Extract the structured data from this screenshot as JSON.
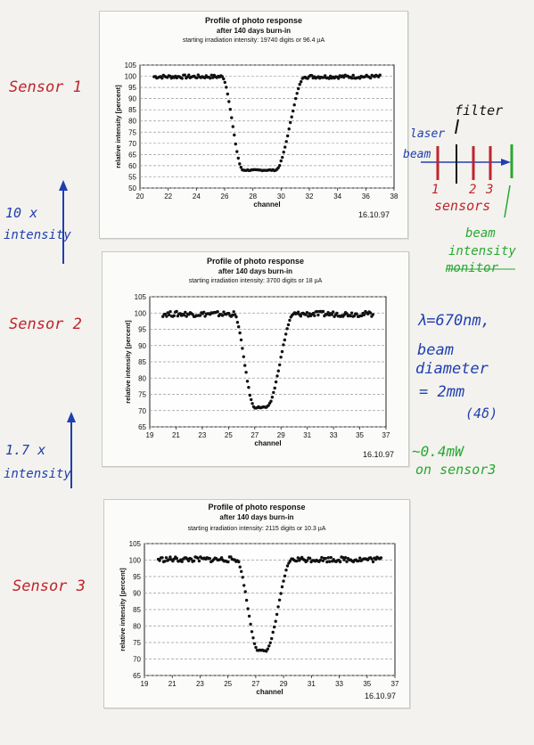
{
  "chart_data": [
    {
      "type": "scatter",
      "title": "Profile of photo response",
      "subtitle": "after 140 days burn-in",
      "note": "starting irradiation intensity: 19740 digits or 96.4 µA",
      "xlabel": "channel",
      "ylabel": "relative intensity [percent]",
      "xlim": [
        20,
        38
      ],
      "ylim": [
        50,
        105
      ],
      "xticks": [
        "20",
        "22",
        "24",
        "26",
        "28",
        "30",
        "32",
        "34",
        "36",
        "38"
      ],
      "yticks": [
        "50",
        "55",
        "60",
        "65",
        "70",
        "75",
        "80",
        "85",
        "90",
        "95",
        "100",
        "105"
      ],
      "grid": true,
      "date": "16.10.97",
      "profile": {
        "x_start": 21,
        "x_end": 37,
        "fall_start": 25.8,
        "bottom_start": 27.3,
        "bottom_end": 29.6,
        "rise_end": 31.7,
        "plateau": 99.8,
        "minimum": 58.0
      }
    },
    {
      "type": "scatter",
      "title": "Profile of photo response",
      "subtitle": "after 140 days burn-in",
      "note": "starting irradiation intensity: 3700 digits or 18 µA",
      "xlabel": "channel",
      "ylabel": "relative intensity [percent]",
      "xlim": [
        19,
        37
      ],
      "ylim": [
        65,
        105
      ],
      "xticks": [
        "19",
        "21",
        "23",
        "25",
        "27",
        "29",
        "31",
        "33",
        "35",
        "37"
      ],
      "yticks": [
        "65",
        "70",
        "75",
        "80",
        "85",
        "90",
        "95",
        "100",
        "105"
      ],
      "grid": true,
      "date": "16.10.97",
      "profile": {
        "x_start": 20,
        "x_end": 36,
        "fall_start": 25.4,
        "bottom_start": 27.0,
        "bottom_end": 27.9,
        "rise_end": 30.0,
        "plateau": 99.7,
        "minimum": 71.0
      }
    },
    {
      "type": "scatter",
      "title": "Profile of photo response",
      "subtitle": "after 140 days burn-in",
      "note": "starting irradiation intensity: 2115 digits or 10.3 µA",
      "xlabel": "channel",
      "ylabel": "relative intensity [percent]",
      "xlim": [
        19,
        37
      ],
      "ylim": [
        65,
        105
      ],
      "xticks": [
        "19",
        "21",
        "23",
        "25",
        "27",
        "29",
        "31",
        "33",
        "35",
        "37"
      ],
      "yticks": [
        "65",
        "70",
        "75",
        "80",
        "85",
        "90",
        "95",
        "100",
        "105"
      ],
      "grid": true,
      "date": "16.10.97",
      "profile": {
        "x_start": 20,
        "x_end": 36,
        "fall_start": 25.6,
        "bottom_start": 27.2,
        "bottom_end": 27.7,
        "rise_end": 29.6,
        "plateau": 100.2,
        "minimum": 72.5
      }
    }
  ],
  "annotations": {
    "sensor1": "Sensor 1",
    "sensor2": "Sensor 2",
    "sensor3": "Sensor 3",
    "gain1a": "10 x",
    "gain1b": "intensity",
    "gain2a": "1.7 x",
    "gain2b": "intensity",
    "filter": "filter",
    "laser": "laser",
    "beam": "beam",
    "s1": "1",
    "s2": "2",
    "s3": "3",
    "sensors": "sensors",
    "monitor_a": "beam",
    "monitor_b": "intensity",
    "monitor_c": "monitor",
    "lambda": "λ=670nm,",
    "diam_a": "beam",
    "diam_b": "diameter",
    "diam_c": "= 2mm",
    "diam_d": "(4δ)",
    "power_a": "~0.4mW",
    "power_b": "on sensor3"
  },
  "colors": {
    "red": "#c0242c",
    "blue": "#1f3fb0",
    "green": "#27a832",
    "ink": "#111111"
  }
}
